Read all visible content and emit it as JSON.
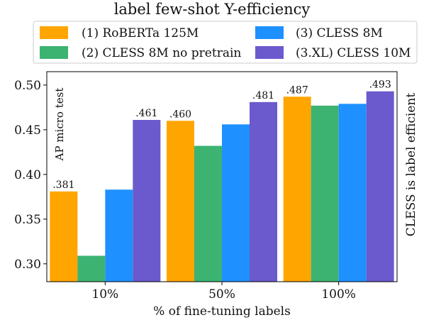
{
  "chart_data": {
    "type": "bar",
    "title": "label few-shot Y-efficiency",
    "xlabel": "% of fine-tuning labels",
    "ylabel": "AP micro test",
    "right_annotation": "CLESS is label efficient",
    "categories": [
      "10%",
      "50%",
      "100%"
    ],
    "ylim": [
      0.28,
      0.515
    ],
    "yticks": [
      0.3,
      0.35,
      0.4,
      0.45,
      0.5
    ],
    "ytick_labels": [
      "0.30",
      "0.35",
      "0.40",
      "0.45",
      "0.50"
    ],
    "grid": false,
    "legend_position": "top",
    "series": [
      {
        "name": "(1) RoBERTa 125M",
        "color": "#ffa500",
        "values": [
          0.381,
          0.46,
          0.487
        ],
        "labels": [
          ".381",
          ".460",
          ".487"
        ]
      },
      {
        "name": "(2) CLESS 8M no pretrain",
        "color": "#3cb371",
        "values": [
          0.309,
          0.432,
          0.477
        ],
        "labels": [
          "",
          "",
          ""
        ]
      },
      {
        "name": "(3) CLESS 8M",
        "color": "#1e90ff",
        "values": [
          0.383,
          0.456,
          0.479
        ],
        "labels": [
          "",
          "",
          ""
        ]
      },
      {
        "name": "(3.XL) CLESS 10M",
        "color": "#6a5acd",
        "values": [
          0.461,
          0.481,
          0.493
        ],
        "labels": [
          ".461",
          ".481",
          ".493"
        ]
      }
    ]
  }
}
